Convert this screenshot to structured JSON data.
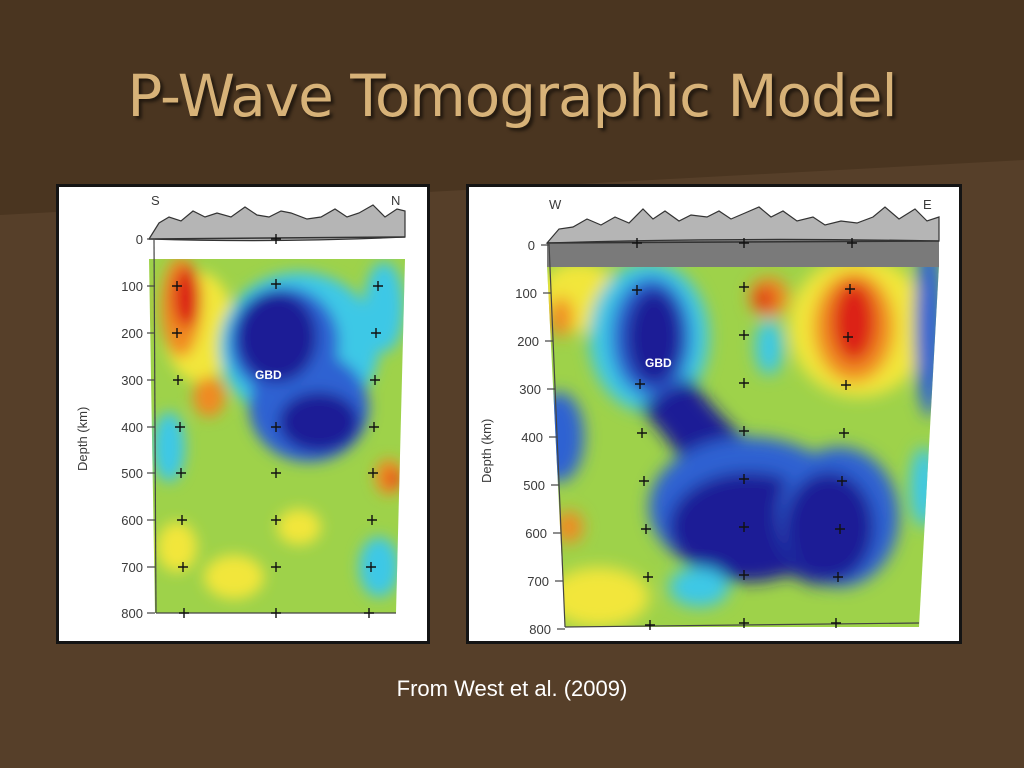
{
  "slide": {
    "title": "P-Wave Tomographic Model",
    "caption": "From West et al. (2009)"
  },
  "left_panel": {
    "dir_left": "S",
    "dir_right": "N",
    "feature_label": "GBD",
    "axis_label": "Depth (km)",
    "depth_ticks": [
      "0",
      "100",
      "200",
      "300",
      "400",
      "500",
      "600",
      "700",
      "800"
    ]
  },
  "right_panel": {
    "dir_left": "W",
    "dir_right": "E",
    "feature_label": "GBD",
    "axis_label": "Depth (km)",
    "depth_ticks": [
      "0",
      "100",
      "200",
      "300",
      "400",
      "500",
      "600",
      "700",
      "800"
    ]
  },
  "colors": {
    "background": "#563f29",
    "title": "#d7b278",
    "fast_anomaly": "#1e1e96",
    "slow_anomaly": "#e01e14"
  }
}
